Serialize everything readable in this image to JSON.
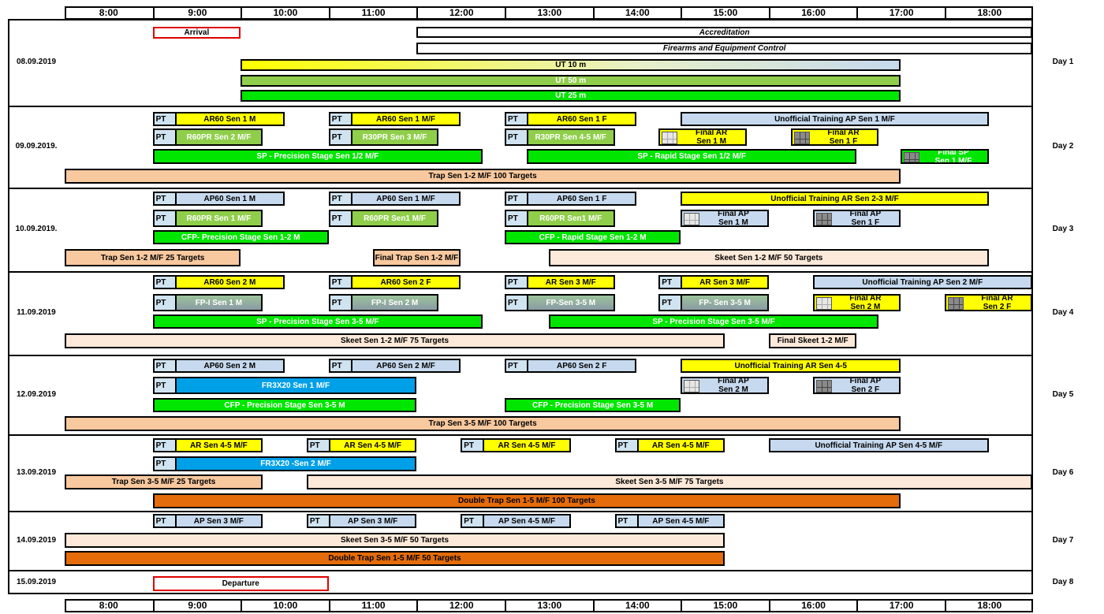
{
  "colors": {
    "yellow": "#ffff00",
    "green": "#00e600",
    "olive_green": "#8fce4a",
    "light_blue": "#c6d9ee",
    "pale_blue": "#cfe3f0",
    "peach": "#f8c89e",
    "light_peach": "#fde9d9",
    "orange": "#e46c0a",
    "cyan_blue": "#00a0e8",
    "red_border": "#e00000",
    "teal_gradient_start": "#9cc39a",
    "teal_gradient_end": "#8a9aa4"
  },
  "time_header": [
    "8:00",
    "9:00",
    "10:00",
    "11:00",
    "12:00",
    "13:00",
    "14:00",
    "15:00",
    "16:00",
    "17:00",
    "18:00"
  ],
  "days": [
    {
      "date": "08.09.2019",
      "day": "Day 1",
      "events": [
        {
          "label": "Arrival",
          "color": "white",
          "border": "red"
        },
        {
          "label": "Accreditation",
          "color": "white",
          "italic": true
        },
        {
          "label": "Firearms and Equipment Control",
          "color": "white",
          "italic": true
        },
        {
          "label": "UT 10 m",
          "color": "yellow_gradient"
        },
        {
          "label": "UT 50 m",
          "color": "olive_green"
        },
        {
          "label": "UT 25 m",
          "color": "green"
        }
      ]
    },
    {
      "date": "09.09.2019.",
      "day": "Day 2",
      "events": [
        {
          "pt": "PT",
          "label": "AR60 Sen 1 M",
          "color": "yellow"
        },
        {
          "pt": "PT",
          "label": "AR60 Sen 1 M/F",
          "color": "yellow"
        },
        {
          "pt": "PT",
          "label": "AR60 Sen 1 F",
          "color": "yellow"
        },
        {
          "label": "Unofficial Training AP Sen 1 M/F",
          "color": "light_blue"
        },
        {
          "pt": "PT",
          "label": "R60PR Sen  2 M/F",
          "color": "olive_green"
        },
        {
          "pt": "PT",
          "label": "R30PR Sen 3 M/F",
          "color": "olive_green"
        },
        {
          "pt": "PT",
          "label": "R30PR Sen 4-5 M/F",
          "color": "olive_green"
        },
        {
          "label": "Final AR\nSen 1 M",
          "color": "yellow",
          "icon": "light-grid-icon"
        },
        {
          "label": "Final AR\nSen 1 F",
          "color": "yellow",
          "icon": "dark-grid-icon"
        },
        {
          "label": "SP - Precision Stage Sen 1/2 M/F",
          "color": "green"
        },
        {
          "label": "SP - Rapid Stage Sen 1/2 M/F",
          "color": "green"
        },
        {
          "label": "Final SP\nSen 1 M/F",
          "color": "green",
          "icon": "dark-grid-icon"
        },
        {
          "label": "Trap Sen 1-2 M/F 100 Targets",
          "color": "peach"
        }
      ]
    },
    {
      "date": "10.09.2019.",
      "day": "Day 3",
      "events": [
        {
          "pt": "PT",
          "label": "AP60 Sen 1 M",
          "color": "light_blue"
        },
        {
          "pt": "PT",
          "label": "AP60 Sen 1 M/F",
          "color": "light_blue"
        },
        {
          "pt": "PT",
          "label": "AP60 Sen 1 F",
          "color": "light_blue"
        },
        {
          "label": "Unofficial Training AR Sen 2-3 M/F",
          "color": "yellow"
        },
        {
          "pt": "PT",
          "label": "R60PR Sen 1 M/F",
          "color": "olive_green"
        },
        {
          "pt": "PT",
          "label": "R60PR Sen1 M/F",
          "color": "olive_green"
        },
        {
          "pt": "PT",
          "label": "R60PR Sen1 M/F",
          "color": "olive_green"
        },
        {
          "label": "Final AP\nSen 1 M",
          "color": "light_blue",
          "icon": "light-grid-icon"
        },
        {
          "label": "Final AP\nSen 1 F",
          "color": "light_blue",
          "icon": "dark-grid-icon"
        },
        {
          "label": "CFP- Precision Stage Sen 1-2 M",
          "color": "green"
        },
        {
          "label": "CFP - Rapid Stage Sen 1-2 M",
          "color": "green"
        },
        {
          "label": "Trap Sen 1-2 M/F  25 Targets",
          "color": "peach"
        },
        {
          "label": "Final Trap Sen 1-2 M/F",
          "color": "peach"
        },
        {
          "label": "Skeet Sen 1-2 M/F 50 Targets",
          "color": "light_peach"
        }
      ]
    },
    {
      "date": "11.09.2019",
      "day": "Day 4",
      "events": [
        {
          "pt": "PT",
          "label": "AR60 Sen 2 M",
          "color": "yellow"
        },
        {
          "pt": "PT",
          "label": "AR60 Sen 2 F",
          "color": "yellow"
        },
        {
          "pt": "PT",
          "label": "AR Sen  3 M/F",
          "color": "yellow"
        },
        {
          "pt": "PT",
          "label": "AR Sen  3 M/F",
          "color": "yellow"
        },
        {
          "label": "Unofficial Training AP Sen 2 M/F",
          "color": "light_blue"
        },
        {
          "pt": "PT",
          "label": "FP-I Sen 1 M",
          "color": "teal_gradient"
        },
        {
          "pt": "PT",
          "label": "FP-I Sen 2 M",
          "color": "teal_gradient"
        },
        {
          "pt": "PT",
          "label": "FP-Sen 3-5 M",
          "color": "teal_gradient"
        },
        {
          "pt": "PT",
          "label": "FP- Sen 3-5 M",
          "color": "teal_gradient"
        },
        {
          "label": "Final AR\nSen 2 M",
          "color": "yellow",
          "icon": "light-grid-icon"
        },
        {
          "label": "Final AR\nSen 2 F",
          "color": "yellow",
          "icon": "dark-grid-icon"
        },
        {
          "label": "SP - Precision Stage Sen 3-5  M/F",
          "color": "green"
        },
        {
          "label": "SP - Precision Stage Sen 3-5 M/F",
          "color": "green"
        },
        {
          "label": "Skeet Sen 1-2 M/F 75 Targets",
          "color": "light_peach"
        },
        {
          "label": "Final Skeet 1-2 M/F",
          "color": "light_peach"
        }
      ]
    },
    {
      "date": "12.09.2019",
      "day": "Day 5",
      "events": [
        {
          "pt": "PT",
          "label": "AP60 Sen 2 M",
          "color": "light_blue"
        },
        {
          "pt": "PT",
          "label": "AP60 Sen 2 M/F",
          "color": "light_blue"
        },
        {
          "pt": "PT",
          "label": "AP60 Sen 2 F",
          "color": "light_blue"
        },
        {
          "label": "Unofficial Training AR Sen 4-5",
          "color": "yellow"
        },
        {
          "pt": "PT",
          "label": "FR3X20  Sen 1 M/F",
          "color": "cyan_blue"
        },
        {
          "label": "Final AP\nSen 2 M",
          "color": "light_blue",
          "icon": "light-grid-icon"
        },
        {
          "label": "Final AP\nSen 2 F",
          "color": "light_blue",
          "icon": "dark-grid-icon"
        },
        {
          "label": "CFP - Precision Stage Sen 3-5 M",
          "color": "green"
        },
        {
          "label": "CFP - Precision Stage Sen 3-5 M",
          "color": "green"
        },
        {
          "label": "Trap Sen 3-5 M/F 100 Targets",
          "color": "peach"
        }
      ]
    },
    {
      "date": "13.09.2019",
      "day": "Day 6",
      "events": [
        {
          "pt": "PT",
          "label": "AR Sen  4-5 M/F",
          "color": "yellow"
        },
        {
          "pt": "PT",
          "label": "AR Sen  4-5 M/F",
          "color": "yellow"
        },
        {
          "pt": "PT",
          "label": "AR Sen  4-5 M/F",
          "color": "yellow"
        },
        {
          "pt": "PT",
          "label": "AR Sen  4-5 M/F",
          "color": "yellow"
        },
        {
          "label": "Unofficial Training AP Sen 4-5 M/F",
          "color": "light_blue"
        },
        {
          "pt": "PT",
          "label": "FR3X20 -Sen 2 M/F",
          "color": "cyan_blue"
        },
        {
          "label": "Trap Sen 3-5 M/F 25 Targets",
          "color": "peach"
        },
        {
          "label": "Skeet Sen 3-5 M/F  75 Targets",
          "color": "light_peach"
        },
        {
          "label": "Double Trap Sen 1-5 M/F 100 Targets",
          "color": "orange"
        }
      ]
    },
    {
      "date": "14.09.2019",
      "day": "Day 7",
      "events": [
        {
          "pt": "PT",
          "label": "AP Sen  3 M/F",
          "color": "light_blue"
        },
        {
          "pt": "PT",
          "label": "AP Sen  3 M/F",
          "color": "light_blue"
        },
        {
          "pt": "PT",
          "label": "AP Sen  4-5 M/F",
          "color": "light_blue"
        },
        {
          "pt": "PT",
          "label": "AP Sen  4-5 M/F",
          "color": "light_blue"
        },
        {
          "label": "Skeet Sen 3-5 M/F  50 Targets",
          "color": "light_peach"
        },
        {
          "label": "Double Trap Sen 1-5 M/F 50 Targets",
          "color": "orange"
        }
      ]
    },
    {
      "date": "15.09.2019",
      "day": "Day 8",
      "events": [
        {
          "label": "Departure",
          "color": "white",
          "border": "red"
        }
      ]
    }
  ]
}
